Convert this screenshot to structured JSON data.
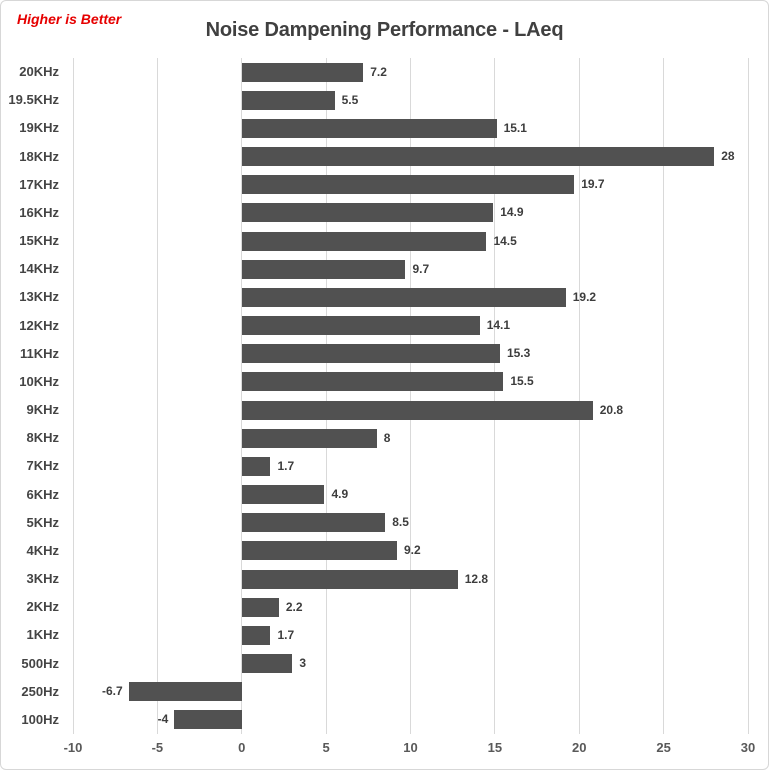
{
  "header": {
    "note": "Higher is Better",
    "title": "Noise Dampening Performance - LAeq"
  },
  "colors": {
    "bar": "#515151",
    "note_text": "#e60000",
    "title_text": "#404040",
    "gridline": "#d9d9d9",
    "axis_tick_text": "#595959",
    "category_text": "#444444",
    "value_text": "#3d3d3d",
    "canvas_border": "#d7d7d7",
    "background": "#ffffff"
  },
  "chart_data": {
    "type": "bar",
    "orientation": "horizontal",
    "title": "Noise Dampening Performance - LAeq",
    "annotation": "Higher is Better",
    "categories": [
      "20KHz",
      "19.5KHz",
      "19KHz",
      "18KHz",
      "17KHz",
      "16KHz",
      "15KHz",
      "14KHz",
      "13KHz",
      "12KHz",
      "11KHz",
      "10KHz",
      "9KHz",
      "8KHz",
      "7KHz",
      "6KHz",
      "5KHz",
      "4KHz",
      "3KHz",
      "2KHz",
      "1KHz",
      "500Hz",
      "250Hz",
      "100Hz"
    ],
    "values": [
      7.2,
      5.5,
      15.1,
      28,
      19.7,
      14.9,
      14.5,
      9.7,
      19.2,
      14.1,
      15.3,
      15.5,
      20.8,
      8,
      1.7,
      4.9,
      8.5,
      9.2,
      12.8,
      2.2,
      1.7,
      3,
      -6.7,
      -4
    ],
    "value_labels": [
      "7.2",
      "5.5",
      "15.1",
      "28",
      "19.7",
      "14.9",
      "14.5",
      "9.7",
      "19.2",
      "14.1",
      "15.3",
      "15.5",
      "20.8",
      "8",
      "1.7",
      "4.9",
      "8.5",
      "9.2",
      "12.8",
      "2.2",
      "1.7",
      "3",
      "-6.7",
      "-4"
    ],
    "xlim": [
      -10,
      30
    ],
    "xticks": [
      -10,
      -5,
      0,
      5,
      10,
      15,
      20,
      25,
      30
    ],
    "xlabel": "",
    "ylabel": "",
    "grid": "vertical-only",
    "legend": "none",
    "bar_color": "#515151"
  }
}
